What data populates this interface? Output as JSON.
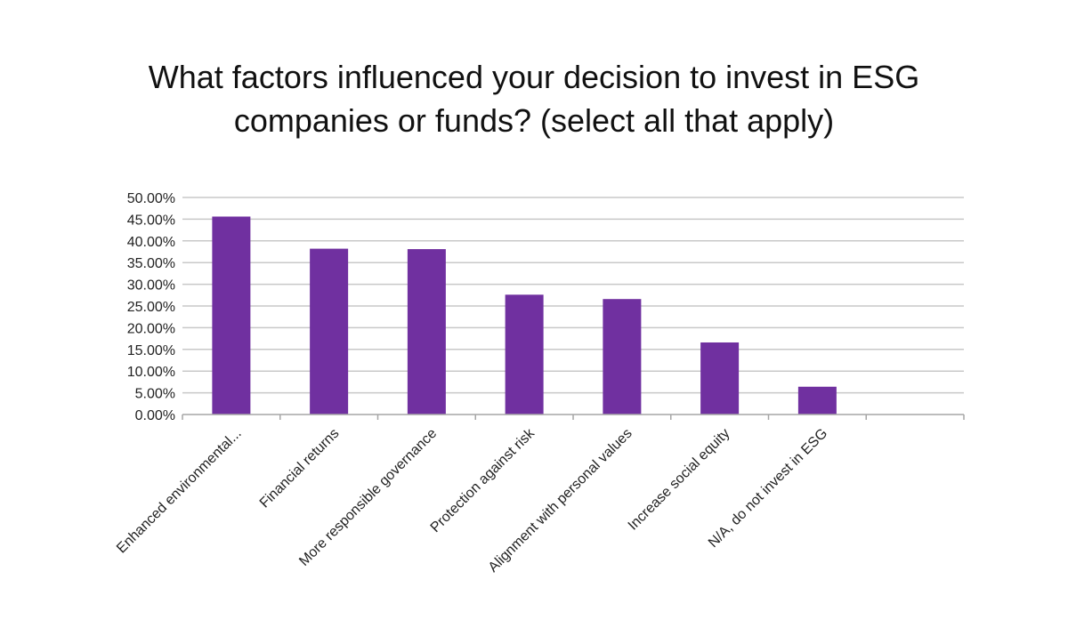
{
  "chart_data": {
    "type": "bar",
    "title": "What factors influenced your decision to invest in ESG companies or funds? (select all that apply)",
    "xlabel": "",
    "ylabel": "",
    "categories": [
      "Enhanced environmental...",
      "Financial returns",
      "More responsible governance",
      "Protection against risk",
      "Alignment with personal values",
      "Increase social equity",
      "N/A, do not invest in ESG"
    ],
    "values": [
      45.6,
      38.2,
      38.1,
      27.6,
      26.6,
      16.6,
      6.4
    ],
    "ylim": [
      0,
      50
    ],
    "yticks": [
      "0.00%",
      "5.00%",
      "10.00%",
      "15.00%",
      "20.00%",
      "25.00%",
      "30.00%",
      "35.00%",
      "40.00%",
      "45.00%",
      "50.00%"
    ],
    "grid": true,
    "legend": "none",
    "colors": {
      "bar": "#7030A0",
      "grid": "#C8C8C8",
      "axis": "#A6A6A6"
    }
  }
}
